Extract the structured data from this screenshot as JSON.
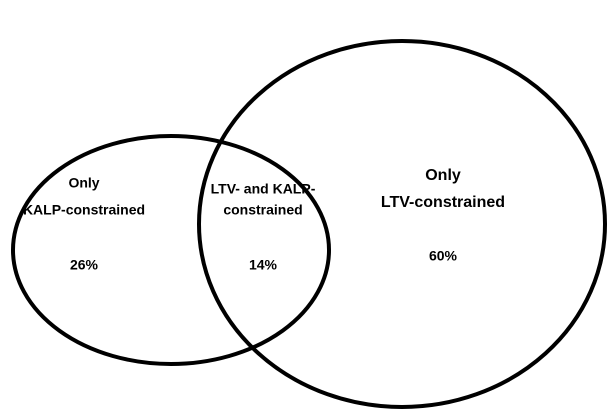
{
  "regions": [
    {
      "lines": [
        "Only",
        "KALP-constrained"
      ],
      "share": "26%"
    },
    {
      "lines": [
        "LTV- and KALP-",
        "constrained"
      ],
      "share": "14%"
    },
    {
      "lines": [
        "Only",
        "LTV-constrained"
      ],
      "share": "60%"
    }
  ]
}
